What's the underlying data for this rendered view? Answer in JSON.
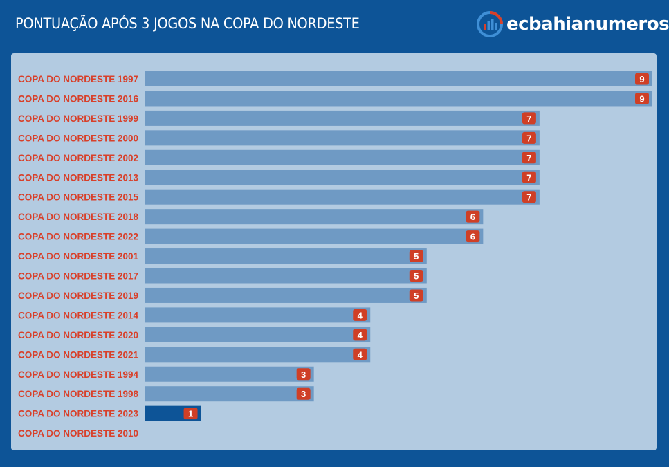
{
  "header": {
    "title": "PONTUAÇÃO APÓS 3 JOGOS NA COPA DO NORDESTE",
    "brand": "ecbahianumeros",
    "brand_icon": "bar-chart-logo-icon"
  },
  "colors": {
    "page_bg": "#0d5497",
    "panel_bg": "#b3cbe1",
    "bar": "#6f9ac4",
    "bar_highlight": "#0d5497",
    "label_text": "#d8402a",
    "badge_bg": "#cf3f26",
    "badge_text": "#ffffff"
  },
  "chart_data": {
    "type": "bar",
    "orientation": "horizontal",
    "title": "PONTUAÇÃO APÓS 3 JOGOS NA COPA DO NORDESTE",
    "xlabel": "",
    "ylabel": "",
    "xlim": [
      0,
      9
    ],
    "grid": false,
    "categories": [
      "COPA DO NORDESTE 1997",
      "COPA DO NORDESTE 2016",
      "COPA DO NORDESTE 1999",
      "COPA DO NORDESTE 2000",
      "COPA DO NORDESTE 2002",
      "COPA DO NORDESTE 2013",
      "COPA DO NORDESTE 2015",
      "COPA DO NORDESTE 2018",
      "COPA DO NORDESTE 2022",
      "COPA DO NORDESTE 2001",
      "COPA DO NORDESTE 2017",
      "COPA DO NORDESTE 2019",
      "COPA DO NORDESTE 2014",
      "COPA DO NORDESTE 2020",
      "COPA DO NORDESTE 2021",
      "COPA DO NORDESTE 1994",
      "COPA DO NORDESTE 1998",
      "COPA DO NORDESTE 2023",
      "COPA DO NORDESTE 2010"
    ],
    "values": [
      9,
      9,
      7,
      7,
      7,
      7,
      7,
      6,
      6,
      5,
      5,
      5,
      4,
      4,
      4,
      3,
      3,
      1,
      null
    ],
    "highlight": "COPA DO NORDESTE 2023"
  }
}
